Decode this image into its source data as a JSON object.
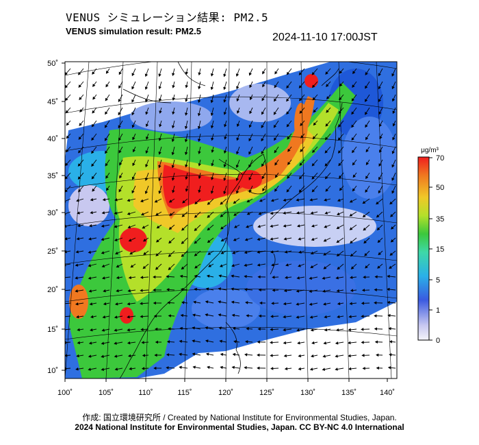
{
  "header": {
    "title_jp": "VENUS シミュレーション結果: PM2.5",
    "title_en": "VENUS simulation result: PM2.5",
    "timestamp": "2024-11-10 17:00JST"
  },
  "map": {
    "region": "East Asia",
    "lon_ticks": [
      "100˚",
      "105˚",
      "110˚",
      "115˚",
      "120˚",
      "125˚",
      "130˚",
      "135˚",
      "140˚"
    ],
    "lat_ticks": [
      "50˚",
      "45˚",
      "40˚",
      "35˚",
      "30˚",
      "25˚",
      "20˚",
      "15˚",
      "10˚"
    ]
  },
  "colorbar": {
    "unit": "μg/m³",
    "ticks": [
      "70",
      "50",
      "35",
      "15",
      "5",
      "1",
      "0"
    ],
    "colors": [
      "#d9d9ee",
      "#4a6ee8",
      "#2aa8e6",
      "#3ed6b0",
      "#3cc83c",
      "#b4e02a",
      "#f0c828",
      "#f07820",
      "#f01e1e"
    ]
  },
  "footer": {
    "credit_line": "作成: 国立環境研究所 / Created by National Institute for Environmental Studies, Japan.",
    "copyright_line": "2024 National Institute for Environmental Studies, Japan. CC BY-NC 4.0 International"
  }
}
